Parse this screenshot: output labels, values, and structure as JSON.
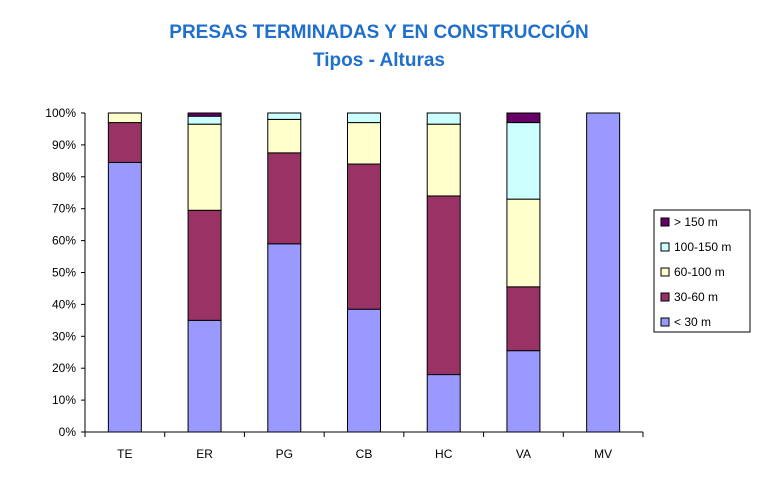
{
  "chart_data": {
    "type": "bar",
    "stacked": true,
    "percent": true,
    "title": "PRESAS TERMINADAS Y EN CONSTRUCCIÓN",
    "subtitle": "Tipos - Alturas",
    "categories": [
      "TE",
      "ER",
      "PG",
      "CB",
      "HC",
      "VA",
      "MV"
    ],
    "ylim": [
      0,
      100
    ],
    "yticks": [
      "0%",
      "10%",
      "20%",
      "30%",
      "40%",
      "50%",
      "60%",
      "70%",
      "80%",
      "90%",
      "100%"
    ],
    "legend_position": "right",
    "series": [
      {
        "name": "< 30 m",
        "color": "#9999FF",
        "values": [
          84.5,
          35,
          59,
          38.5,
          18,
          25.5,
          100
        ]
      },
      {
        "name": "30-60 m",
        "color": "#993366",
        "values": [
          12.5,
          34.5,
          28.5,
          45.5,
          56,
          20,
          0
        ]
      },
      {
        "name": "60-100 m",
        "color": "#FFFFCC",
        "values": [
          3,
          27,
          10.5,
          13,
          22.5,
          27.5,
          0
        ]
      },
      {
        "name": "100-150 m",
        "color": "#CCFFFF",
        "values": [
          0,
          2.5,
          2,
          3,
          3.5,
          24,
          0
        ]
      },
      {
        "name": "> 150 m",
        "color": "#660066",
        "values": [
          0,
          1,
          0,
          0,
          0,
          3,
          0
        ]
      }
    ]
  }
}
